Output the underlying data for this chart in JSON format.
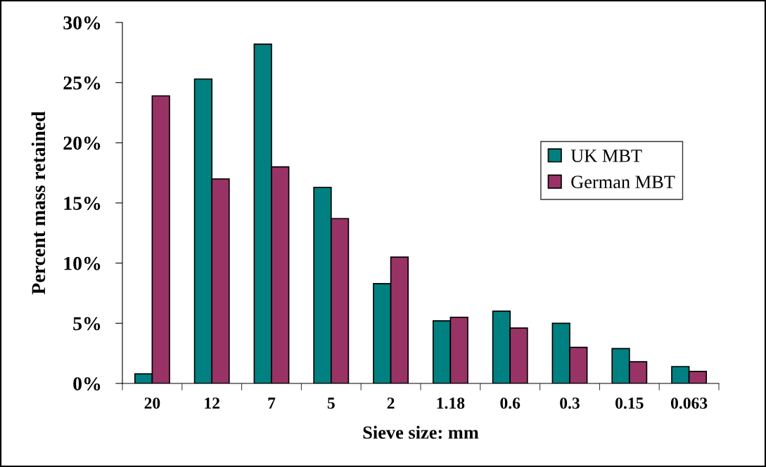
{
  "chart_data": {
    "type": "bar",
    "xlabel": "Sieve size: mm",
    "ylabel": "Percent mass retained",
    "categories": [
      "20",
      "12",
      "7",
      "5",
      "2",
      "1.18",
      "0.6",
      "0.3",
      "0.15",
      "0.063"
    ],
    "series": [
      {
        "name": "UK MBT",
        "color": "#008080",
        "values": [
          0.8,
          25.3,
          28.2,
          16.3,
          8.3,
          5.2,
          6.0,
          5.0,
          2.9,
          1.4
        ]
      },
      {
        "name": "German MBT",
        "color": "#993366",
        "values": [
          23.9,
          17.0,
          18.0,
          13.7,
          10.5,
          5.5,
          4.6,
          3.0,
          1.8,
          1.0
        ]
      }
    ],
    "ylim": [
      0,
      30
    ],
    "yticks": [
      {
        "value": 0,
        "label": "0%"
      },
      {
        "value": 5,
        "label": "5%"
      },
      {
        "value": 10,
        "label": "10%"
      },
      {
        "value": 15,
        "label": "15%"
      },
      {
        "value": 20,
        "label": "20%"
      },
      {
        "value": 25,
        "label": "25%"
      },
      {
        "value": 30,
        "label": "30%"
      }
    ],
    "grid": false,
    "legend": "right"
  }
}
